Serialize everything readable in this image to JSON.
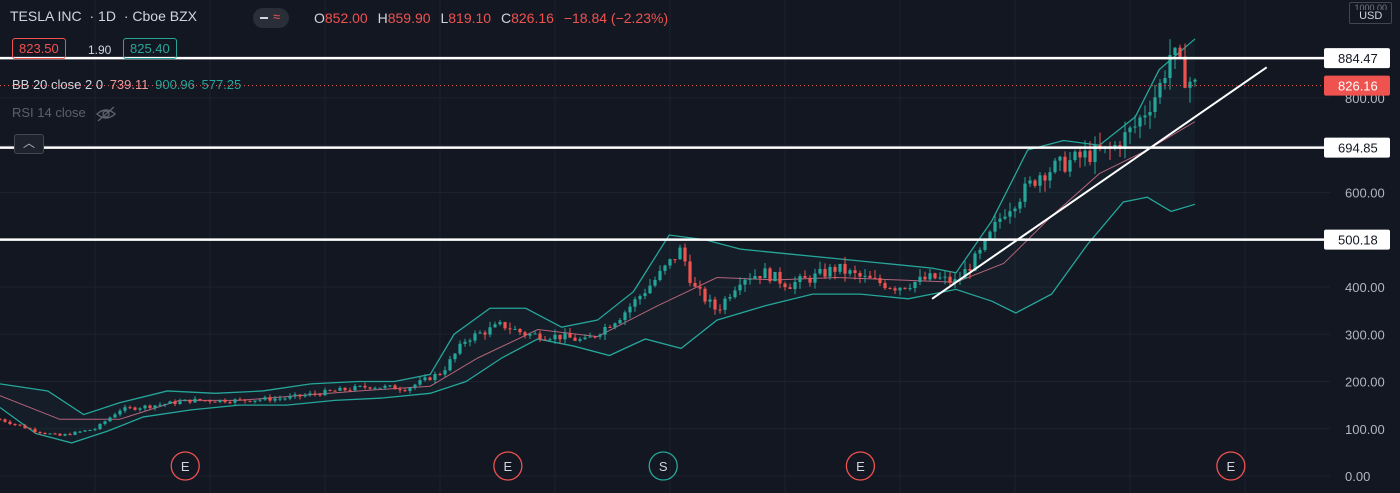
{
  "header": {
    "symbol": "TESLA INC",
    "interval": "· 1D",
    "exchange": "· Cboe BZX"
  },
  "ohlc": {
    "o_label": "O",
    "open": "852.00",
    "h_label": "H",
    "high": "859.90",
    "l_label": "L",
    "low": "819.10",
    "c_label": "C",
    "close": "826.16",
    "change": "−18.84 (−2.23%)"
  },
  "order_chips": {
    "sell": "823.50",
    "spread": "1.90",
    "buy": "825.40"
  },
  "indicators": {
    "bb": {
      "label": "BB 20 close 2 0",
      "basis": "739.11",
      "upper": "900.96",
      "lower": "577.25"
    },
    "rsi": {
      "label": "RSI 14 close"
    }
  },
  "axis": {
    "currency": "USD",
    "top_partial_label": "1000.00"
  },
  "colors": {
    "up": "#26a69a",
    "down": "#ef5350",
    "band": "#26a69a",
    "basis": "#b5647a",
    "background": "#131722",
    "grid": "#1e222d",
    "lines": "#ffffff"
  },
  "chart_data": {
    "type": "candlestick",
    "title": "TESLA INC",
    "yaxis": {
      "ticks": [
        0,
        100,
        200,
        300,
        400,
        500,
        600,
        700,
        800
      ],
      "tick_labels": [
        "0.00",
        "100.00",
        "200.00",
        "300.00",
        "400.00",
        "500.00",
        "600.00",
        "700.00",
        "800.00"
      ],
      "ylim": [
        0,
        1000
      ]
    },
    "horizontal_lines": [
      {
        "label": "884.47",
        "value": 884.47
      },
      {
        "label": "694.85",
        "value": 694.85
      },
      {
        "label": "500.18",
        "value": 500.18
      }
    ],
    "last_price": {
      "label": "826.16",
      "value": 826.16
    },
    "trendline": {
      "from": {
        "bar": 0.78,
        "value": 375
      },
      "to": {
        "bar": 1.06,
        "value": 865
      }
    },
    "event_markers": [
      {
        "label": "E",
        "pos": 0.155,
        "color": "#ef5350"
      },
      {
        "label": "E",
        "pos": 0.425,
        "color": "#ef5350"
      },
      {
        "label": "S",
        "pos": 0.555,
        "color": "#26a69a"
      },
      {
        "label": "E",
        "pos": 0.72,
        "color": "#ef5350"
      },
      {
        "label": "E",
        "pos": 1.03,
        "color": "#ef5350"
      }
    ],
    "close_path": [
      [
        0,
        120
      ],
      [
        0.03,
        95
      ],
      [
        0.05,
        85
      ],
      [
        0.08,
        100
      ],
      [
        0.1,
        140
      ],
      [
        0.13,
        150
      ],
      [
        0.16,
        160
      ],
      [
        0.2,
        160
      ],
      [
        0.24,
        165
      ],
      [
        0.28,
        180
      ],
      [
        0.31,
        190
      ],
      [
        0.34,
        185
      ],
      [
        0.37,
        220
      ],
      [
        0.39,
        290
      ],
      [
        0.42,
        320
      ],
      [
        0.44,
        300
      ],
      [
        0.47,
        295
      ],
      [
        0.49,
        285
      ],
      [
        0.52,
        340
      ],
      [
        0.55,
        420
      ],
      [
        0.57,
        480
      ],
      [
        0.58,
        400
      ],
      [
        0.6,
        350
      ],
      [
        0.62,
        420
      ],
      [
        0.64,
        430
      ],
      [
        0.66,
        405
      ],
      [
        0.68,
        420
      ],
      [
        0.7,
        440
      ],
      [
        0.72,
        420
      ],
      [
        0.75,
        400
      ],
      [
        0.78,
        420
      ],
      [
        0.8,
        410
      ],
      [
        0.82,
        470
      ],
      [
        0.84,
        560
      ],
      [
        0.86,
        610
      ],
      [
        0.87,
        640
      ],
      [
        0.89,
        660
      ],
      [
        0.91,
        680
      ],
      [
        0.93,
        690
      ],
      [
        0.95,
        740
      ],
      [
        0.97,
        820
      ],
      [
        0.98,
        900
      ],
      [
        0.99,
        850
      ],
      [
        1.0,
        826
      ]
    ],
    "upper_band": [
      [
        0,
        195
      ],
      [
        0.04,
        180
      ],
      [
        0.07,
        130
      ],
      [
        0.1,
        155
      ],
      [
        0.14,
        180
      ],
      [
        0.18,
        175
      ],
      [
        0.22,
        180
      ],
      [
        0.26,
        195
      ],
      [
        0.3,
        200
      ],
      [
        0.33,
        200
      ],
      [
        0.36,
        215
      ],
      [
        0.38,
        300
      ],
      [
        0.41,
        355
      ],
      [
        0.44,
        355
      ],
      [
        0.47,
        315
      ],
      [
        0.5,
        330
      ],
      [
        0.53,
        390
      ],
      [
        0.56,
        510
      ],
      [
        0.59,
        500
      ],
      [
        0.62,
        480
      ],
      [
        0.66,
        470
      ],
      [
        0.7,
        460
      ],
      [
        0.74,
        450
      ],
      [
        0.78,
        440
      ],
      [
        0.8,
        430
      ],
      [
        0.83,
        540
      ],
      [
        0.86,
        690
      ],
      [
        0.89,
        710
      ],
      [
        0.92,
        700
      ],
      [
        0.95,
        760
      ],
      [
        0.97,
        860
      ],
      [
        1.0,
        925
      ]
    ],
    "lower_band": [
      [
        0,
        145
      ],
      [
        0.03,
        90
      ],
      [
        0.06,
        70
      ],
      [
        0.09,
        95
      ],
      [
        0.12,
        125
      ],
      [
        0.16,
        140
      ],
      [
        0.2,
        150
      ],
      [
        0.24,
        150
      ],
      [
        0.28,
        160
      ],
      [
        0.32,
        165
      ],
      [
        0.36,
        175
      ],
      [
        0.39,
        200
      ],
      [
        0.42,
        250
      ],
      [
        0.45,
        290
      ],
      [
        0.48,
        275
      ],
      [
        0.51,
        255
      ],
      [
        0.54,
        290
      ],
      [
        0.57,
        270
      ],
      [
        0.6,
        330
      ],
      [
        0.64,
        360
      ],
      [
        0.68,
        385
      ],
      [
        0.72,
        385
      ],
      [
        0.76,
        375
      ],
      [
        0.8,
        395
      ],
      [
        0.83,
        370
      ],
      [
        0.85,
        345
      ],
      [
        0.88,
        385
      ],
      [
        0.91,
        490
      ],
      [
        0.94,
        580
      ],
      [
        0.96,
        590
      ],
      [
        0.98,
        560
      ],
      [
        1.0,
        575
      ]
    ],
    "basis_line": [
      [
        0,
        170
      ],
      [
        0.05,
        120
      ],
      [
        0.1,
        120
      ],
      [
        0.15,
        160
      ],
      [
        0.2,
        160
      ],
      [
        0.25,
        170
      ],
      [
        0.3,
        180
      ],
      [
        0.36,
        190
      ],
      [
        0.4,
        250
      ],
      [
        0.45,
        310
      ],
      [
        0.5,
        295
      ],
      [
        0.55,
        360
      ],
      [
        0.6,
        420
      ],
      [
        0.65,
        415
      ],
      [
        0.7,
        420
      ],
      [
        0.75,
        415
      ],
      [
        0.8,
        410
      ],
      [
        0.84,
        450
      ],
      [
        0.88,
        550
      ],
      [
        0.92,
        640
      ],
      [
        0.96,
        690
      ],
      [
        1.0,
        750
      ]
    ]
  }
}
